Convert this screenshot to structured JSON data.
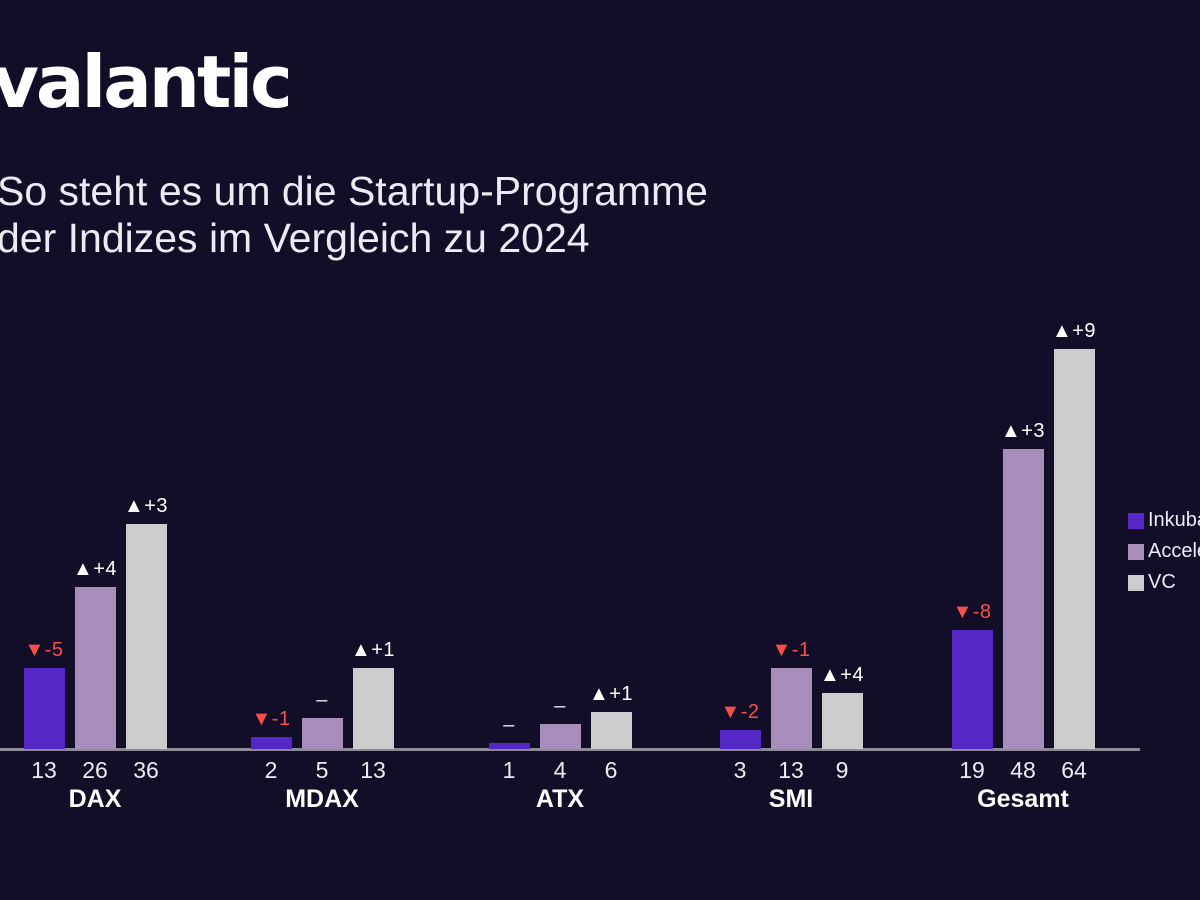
{
  "brand": {
    "logo_text": "valantic"
  },
  "title": {
    "line1": "So steht es um die Startup-Programme",
    "line2": "der Indizes im Vergleich zu 2024"
  },
  "colors": {
    "background": "#120e27",
    "axis_line": "#8c8a96",
    "text_primary": "#ffffff",
    "text_secondary": "#eceaf2"
  },
  "legend": {
    "items": [
      {
        "label": "Inkubatoren",
        "color": "#5428c4"
      },
      {
        "label": "Acceleratoren",
        "color": "#a78dba"
      },
      {
        "label": "VC",
        "color": "#cccccc"
      }
    ]
  },
  "chart_data": {
    "type": "bar",
    "title": "So steht es um die Startup-Programme der Indizes im Vergleich zu 2024",
    "categories": [
      "DAX",
      "MDAX",
      "ATX",
      "SMI",
      "Gesamt"
    ],
    "series": [
      {
        "name": "Inkubatoren",
        "color": "#5428c4",
        "values": [
          13,
          2,
          1,
          3,
          19
        ],
        "delta_labels": [
          "▼-5",
          "▼-1",
          "–",
          "▼-2",
          "▼-8"
        ]
      },
      {
        "name": "Acceleratoren",
        "color": "#a78dba",
        "values": [
          26,
          5,
          4,
          13,
          48
        ],
        "delta_labels": [
          "▲+4",
          "–",
          "–",
          "▼-1",
          "▲+3"
        ]
      },
      {
        "name": "VC",
        "color": "#cccccc",
        "values": [
          36,
          13,
          6,
          9,
          64
        ],
        "delta_labels": [
          "▲+3",
          "▲+1",
          "▲+1",
          "▲+4",
          "▲+9"
        ]
      }
    ],
    "ylim": [
      0,
      64
    ],
    "grid": false,
    "axis_labels_position": "below-axis",
    "legend_position": "right",
    "delta_colors": {
      "up": "#ffffff",
      "down": "#f4504b",
      "zero": "#eceaf2"
    }
  }
}
